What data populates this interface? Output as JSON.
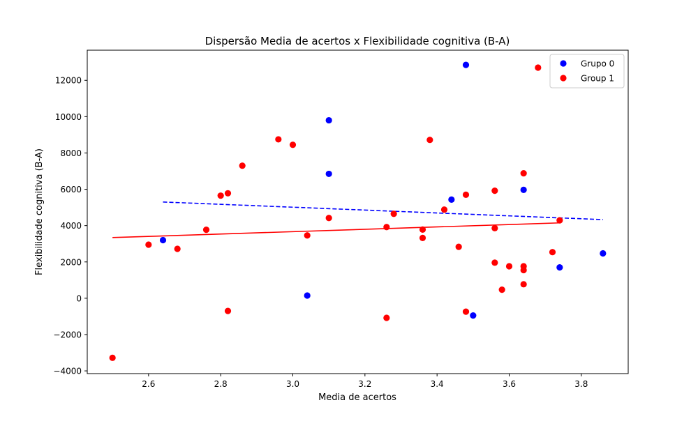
{
  "chart_data": {
    "type": "scatter",
    "title": "Dispersão Media de acertos x Flexibilidade cognitiva (B-A)",
    "xlabel": "Media de acertos",
    "ylabel": "Flexibilidade cognitiva (B-A)",
    "xlim": [
      2.43,
      3.93
    ],
    "ylim": [
      -4150,
      13660
    ],
    "xticks": [
      2.6,
      2.8,
      3.0,
      3.2,
      3.4,
      3.6,
      3.8
    ],
    "xtick_labels": [
      "2.6",
      "2.8",
      "3.0",
      "3.2",
      "3.4",
      "3.6",
      "3.8"
    ],
    "yticks": [
      -4000,
      -2000,
      0,
      2000,
      4000,
      6000,
      8000,
      10000,
      12000
    ],
    "ytick_labels": [
      "−4000",
      "−2000",
      "0",
      "2000",
      "4000",
      "6000",
      "8000",
      "10000",
      "12000"
    ],
    "grid": false,
    "legend_position": "top-right",
    "series": [
      {
        "name": "Grupo 0",
        "color": "#0000ff",
        "points": [
          [
            2.64,
            3200
          ],
          [
            3.04,
            150
          ],
          [
            3.1,
            9800
          ],
          [
            3.1,
            6850
          ],
          [
            3.44,
            5430
          ],
          [
            3.48,
            12850
          ],
          [
            3.5,
            -950
          ],
          [
            3.64,
            5970
          ],
          [
            3.74,
            1700
          ],
          [
            3.86,
            2470
          ]
        ],
        "trend": {
          "x": [
            2.64,
            3.86
          ],
          "y": [
            5300,
            4330
          ],
          "style": "dashed"
        }
      },
      {
        "name": "Group 1",
        "color": "#ff0000",
        "points": [
          [
            2.5,
            -3280
          ],
          [
            2.6,
            2950
          ],
          [
            2.68,
            2720
          ],
          [
            2.76,
            3770
          ],
          [
            2.8,
            5650
          ],
          [
            2.82,
            5780
          ],
          [
            2.82,
            -700
          ],
          [
            2.86,
            7300
          ],
          [
            2.96,
            8750
          ],
          [
            3.0,
            8450
          ],
          [
            3.04,
            3460
          ],
          [
            3.1,
            4420
          ],
          [
            3.26,
            3920
          ],
          [
            3.26,
            -1080
          ],
          [
            3.28,
            4650
          ],
          [
            3.36,
            3780
          ],
          [
            3.36,
            3320
          ],
          [
            3.38,
            8720
          ],
          [
            3.42,
            4880
          ],
          [
            3.46,
            2830
          ],
          [
            3.48,
            5700
          ],
          [
            3.48,
            -740
          ],
          [
            3.56,
            5920
          ],
          [
            3.56,
            3860
          ],
          [
            3.56,
            1960
          ],
          [
            3.58,
            470
          ],
          [
            3.6,
            1760
          ],
          [
            3.64,
            6880
          ],
          [
            3.64,
            1760
          ],
          [
            3.64,
            1550
          ],
          [
            3.64,
            770
          ],
          [
            3.68,
            12700
          ],
          [
            3.72,
            2540
          ],
          [
            3.74,
            4290
          ]
        ],
        "trend": {
          "x": [
            2.5,
            3.74
          ],
          "y": [
            3340,
            4150
          ],
          "style": "solid"
        }
      }
    ]
  }
}
